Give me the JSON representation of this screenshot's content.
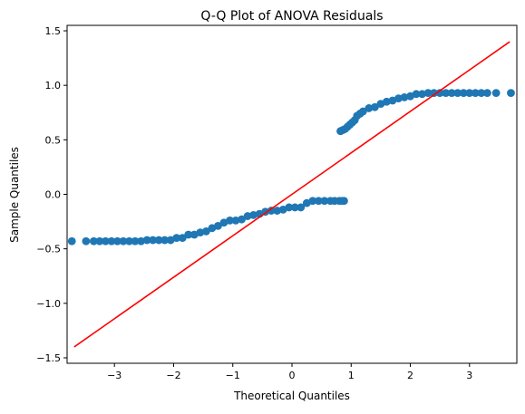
{
  "chart_data": {
    "type": "scatter",
    "title": "Q-Q Plot of ANOVA Residuals",
    "xlabel": "Theoretical Quantiles",
    "ylabel": "Sample Quantiles",
    "xlim": [
      -3.8,
      3.8
    ],
    "ylim": [
      -1.55,
      1.55
    ],
    "xticks": [
      -3,
      -2,
      -1,
      0,
      1,
      2,
      3
    ],
    "xtick_labels": [
      "−3",
      "−2",
      "−1",
      "0",
      "1",
      "2",
      "3"
    ],
    "yticks": [
      -1.5,
      -1.0,
      -0.5,
      0.0,
      0.5,
      1.0,
      1.5
    ],
    "ytick_labels": [
      "−1.5",
      "−1.0",
      "−0.5",
      "0.0",
      "0.5",
      "1.0",
      "1.5"
    ],
    "grid": false,
    "series": [
      {
        "kind": "points",
        "color": "#1f77b4",
        "x": [
          -3.72,
          -3.48,
          -3.35,
          -3.25,
          -3.15,
          -3.05,
          -2.95,
          -2.85,
          -2.75,
          -2.65,
          -2.55,
          -2.45,
          -2.35,
          -2.25,
          -2.15,
          -2.05,
          -1.95,
          -1.85,
          -1.75,
          -1.65,
          -1.55,
          -1.45,
          -1.35,
          -1.25,
          -1.15,
          -1.05,
          -0.95,
          -0.85,
          -0.75,
          -0.65,
          -0.55,
          -0.45,
          -0.35,
          -0.25,
          -0.15,
          -0.05,
          0.05,
          0.15,
          0.25,
          0.35,
          0.45,
          0.55,
          0.65,
          0.72,
          0.8,
          0.85,
          0.88,
          0.82,
          0.86,
          0.9,
          0.94,
          0.98,
          1.02,
          1.06,
          1.1,
          1.15,
          1.2,
          1.3,
          1.4,
          1.5,
          1.6,
          1.7,
          1.8,
          1.9,
          2.0,
          2.1,
          2.2,
          2.3,
          2.4,
          2.5,
          2.6,
          2.7,
          2.8,
          2.9,
          3.0,
          3.1,
          3.2,
          3.3,
          3.45,
          3.7
        ],
        "y": [
          -0.43,
          -0.43,
          -0.43,
          -0.43,
          -0.43,
          -0.43,
          -0.43,
          -0.43,
          -0.43,
          -0.43,
          -0.43,
          -0.42,
          -0.42,
          -0.42,
          -0.42,
          -0.42,
          -0.4,
          -0.4,
          -0.37,
          -0.37,
          -0.35,
          -0.34,
          -0.31,
          -0.29,
          -0.26,
          -0.24,
          -0.24,
          -0.23,
          -0.2,
          -0.19,
          -0.18,
          -0.16,
          -0.15,
          -0.15,
          -0.14,
          -0.12,
          -0.12,
          -0.12,
          -0.08,
          -0.06,
          -0.06,
          -0.06,
          -0.06,
          -0.06,
          -0.06,
          -0.06,
          -0.06,
          0.58,
          0.59,
          0.6,
          0.62,
          0.64,
          0.66,
          0.68,
          0.72,
          0.74,
          0.76,
          0.79,
          0.8,
          0.83,
          0.85,
          0.86,
          0.88,
          0.89,
          0.9,
          0.92,
          0.92,
          0.93,
          0.93,
          0.93,
          0.93,
          0.93,
          0.93,
          0.93,
          0.93,
          0.93,
          0.93,
          0.93,
          0.93,
          0.93
        ]
      },
      {
        "kind": "line",
        "color": "#ff0000",
        "x": [
          -3.68,
          3.68
        ],
        "y": [
          -1.4,
          1.4
        ]
      }
    ]
  }
}
